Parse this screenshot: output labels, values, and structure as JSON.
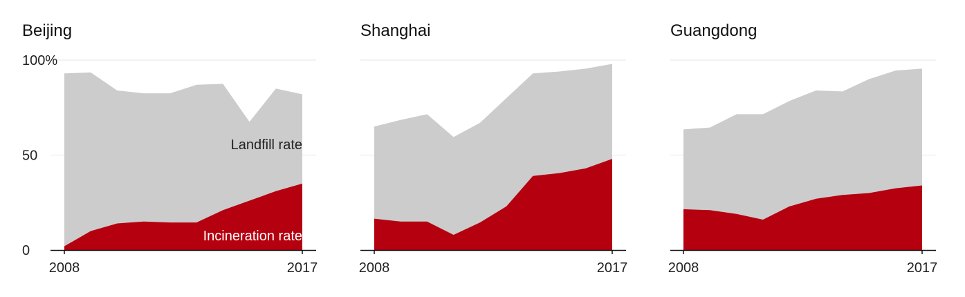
{
  "colors": {
    "landfill": "#cccccc",
    "incineration": "#b5000f",
    "grid": "#e6e6e6",
    "axis": "#111111",
    "text": "#222222",
    "annotation_on_red": "#ffffff",
    "annotation_on_gray": "#222222"
  },
  "chart_data": [
    {
      "type": "area",
      "title": "Beijing",
      "x": [
        2008,
        2009,
        2010,
        2011,
        2012,
        2013,
        2014,
        2015,
        2016,
        2017
      ],
      "xticks": [
        "2008",
        "2017"
      ],
      "yticks": [
        "0",
        "50",
        "100%"
      ],
      "ylim": [
        0,
        100
      ],
      "grid": true,
      "series": [
        {
          "name": "Incineration rate",
          "values": [
            2,
            10,
            14,
            15,
            14.5,
            14.5,
            21,
            26,
            31,
            35
          ]
        },
        {
          "name": "Landfill rate",
          "values": [
            93,
            93.5,
            84,
            82.5,
            82.5,
            87,
            87.5,
            67.5,
            85,
            82
          ]
        }
      ],
      "annotations": [
        {
          "text": "Landfill rate",
          "series": "Landfill rate"
        },
        {
          "text": "Incineration rate",
          "series": "Incineration rate"
        }
      ]
    },
    {
      "type": "area",
      "title": "Shanghai",
      "x": [
        2008,
        2009,
        2010,
        2011,
        2012,
        2013,
        2014,
        2015,
        2016,
        2017
      ],
      "xticks": [
        "2008",
        "2017"
      ],
      "ylim": [
        0,
        100
      ],
      "grid": true,
      "series": [
        {
          "name": "Incineration rate",
          "values": [
            16.5,
            15,
            15,
            8,
            14.5,
            23,
            39,
            40.5,
            43,
            48
          ]
        },
        {
          "name": "Landfill rate",
          "values": [
            65,
            68.5,
            71.5,
            59.5,
            67,
            80,
            93,
            94,
            95.5,
            98
          ]
        }
      ]
    },
    {
      "type": "area",
      "title": "Guangdong",
      "x": [
        2008,
        2009,
        2010,
        2011,
        2012,
        2013,
        2014,
        2015,
        2016,
        2017
      ],
      "xticks": [
        "2008",
        "2017"
      ],
      "ylim": [
        0,
        100
      ],
      "grid": true,
      "series": [
        {
          "name": "Incineration rate",
          "values": [
            21.5,
            21,
            19,
            16,
            23,
            27,
            29,
            30,
            32.5,
            34
          ]
        },
        {
          "name": "Landfill rate",
          "values": [
            63.5,
            64.5,
            71.5,
            71.5,
            78.5,
            84,
            83.5,
            90,
            94.5,
            95.5
          ]
        }
      ]
    }
  ]
}
